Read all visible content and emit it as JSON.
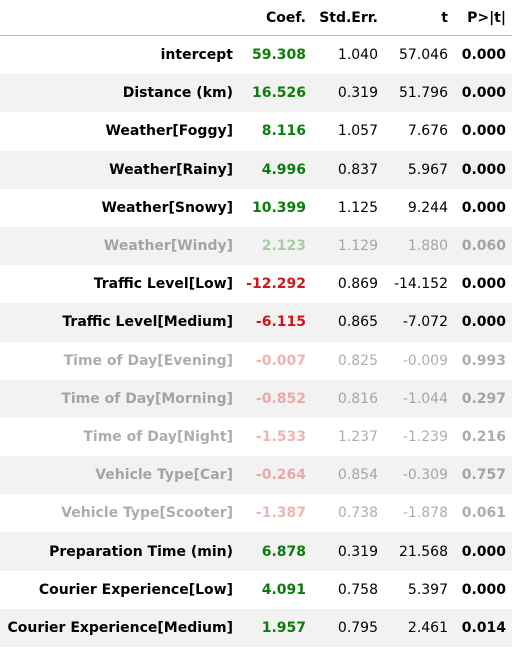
{
  "table": {
    "headers": [
      "",
      "Coef.",
      "Std.Err.",
      "t",
      "P>|t|"
    ],
    "rows": [
      {
        "name": "intercept",
        "coef": "59.308",
        "se": "1.040",
        "t": "57.046",
        "p": "0.000",
        "sign": "pos",
        "significant": true
      },
      {
        "name": "Distance (km)",
        "coef": "16.526",
        "se": "0.319",
        "t": "51.796",
        "p": "0.000",
        "sign": "pos",
        "significant": true
      },
      {
        "name": "Weather[Foggy]",
        "coef": "8.116",
        "se": "1.057",
        "t": "7.676",
        "p": "0.000",
        "sign": "pos",
        "significant": true
      },
      {
        "name": "Weather[Rainy]",
        "coef": "4.996",
        "se": "0.837",
        "t": "5.967",
        "p": "0.000",
        "sign": "pos",
        "significant": true
      },
      {
        "name": "Weather[Snowy]",
        "coef": "10.399",
        "se": "1.125",
        "t": "9.244",
        "p": "0.000",
        "sign": "pos",
        "significant": true
      },
      {
        "name": "Weather[Windy]",
        "coef": "2.123",
        "se": "1.129",
        "t": "1.880",
        "p": "0.060",
        "sign": "pos",
        "significant": false
      },
      {
        "name": "Traffic Level[Low]",
        "coef": "-12.292",
        "se": "0.869",
        "t": "-14.152",
        "p": "0.000",
        "sign": "neg",
        "significant": true
      },
      {
        "name": "Traffic Level[Medium]",
        "coef": "-6.115",
        "se": "0.865",
        "t": "-7.072",
        "p": "0.000",
        "sign": "neg",
        "significant": true
      },
      {
        "name": "Time of Day[Evening]",
        "coef": "-0.007",
        "se": "0.825",
        "t": "-0.009",
        "p": "0.993",
        "sign": "neg",
        "significant": false
      },
      {
        "name": "Time of Day[Morning]",
        "coef": "-0.852",
        "se": "0.816",
        "t": "-1.044",
        "p": "0.297",
        "sign": "neg",
        "significant": false
      },
      {
        "name": "Time of Day[Night]",
        "coef": "-1.533",
        "se": "1.237",
        "t": "-1.239",
        "p": "0.216",
        "sign": "neg",
        "significant": false
      },
      {
        "name": "Vehicle Type[Car]",
        "coef": "-0.264",
        "se": "0.854",
        "t": "-0.309",
        "p": "0.757",
        "sign": "neg",
        "significant": false
      },
      {
        "name": "Vehicle Type[Scooter]",
        "coef": "-1.387",
        "se": "0.738",
        "t": "-1.878",
        "p": "0.061",
        "sign": "neg",
        "significant": false
      },
      {
        "name": "Preparation Time (min)",
        "coef": "6.878",
        "se": "0.319",
        "t": "21.568",
        "p": "0.000",
        "sign": "pos",
        "significant": true
      },
      {
        "name": "Courier Experience[Low]",
        "coef": "4.091",
        "se": "0.758",
        "t": "5.397",
        "p": "0.000",
        "sign": "pos",
        "significant": true
      },
      {
        "name": "Courier Experience[Medium]",
        "coef": "1.957",
        "se": "0.795",
        "t": "2.461",
        "p": "0.014",
        "sign": "pos",
        "significant": true
      }
    ]
  },
  "colors": {
    "positive": "#0a7d0a",
    "negative": "#d01616",
    "stripe": "#f2f2f2"
  }
}
